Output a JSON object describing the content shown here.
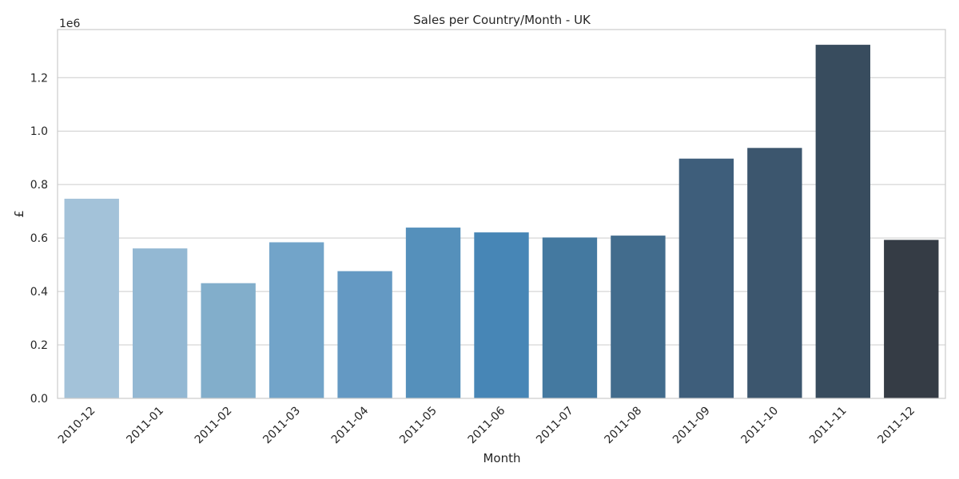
{
  "chart_data": {
    "type": "bar",
    "title": "Sales per Country/Month - UK",
    "xlabel": "Month",
    "ylabel": "£",
    "y_offset_label": "1e6",
    "y_multiplier": 1000000,
    "ylim": [
      0,
      1.38
    ],
    "yticks": [
      0.0,
      0.2,
      0.4,
      0.6,
      0.8,
      1.0,
      1.2
    ],
    "ytick_labels": [
      "0.0",
      "0.2",
      "0.4",
      "0.6",
      "0.8",
      "1.0",
      "1.2"
    ],
    "grid": "y-major",
    "legend": "none",
    "categories": [
      "2010-12",
      "2011-01",
      "2011-02",
      "2011-03",
      "2011-04",
      "2011-05",
      "2011-06",
      "2011-07",
      "2011-08",
      "2011-09",
      "2011-10",
      "2011-11",
      "2011-12"
    ],
    "values": [
      0.747,
      0.561,
      0.431,
      0.584,
      0.476,
      0.639,
      0.621,
      0.602,
      0.609,
      0.897,
      0.937,
      1.323,
      0.593
    ],
    "colors": [
      "#a3c2d9",
      "#93b8d3",
      "#82aecb",
      "#72a4c9",
      "#6499c3",
      "#5590bb",
      "#4786b6",
      "#4479a0",
      "#426c8d",
      "#3e5e7b",
      "#3c566e",
      "#384c5e",
      "#353c45"
    ]
  }
}
